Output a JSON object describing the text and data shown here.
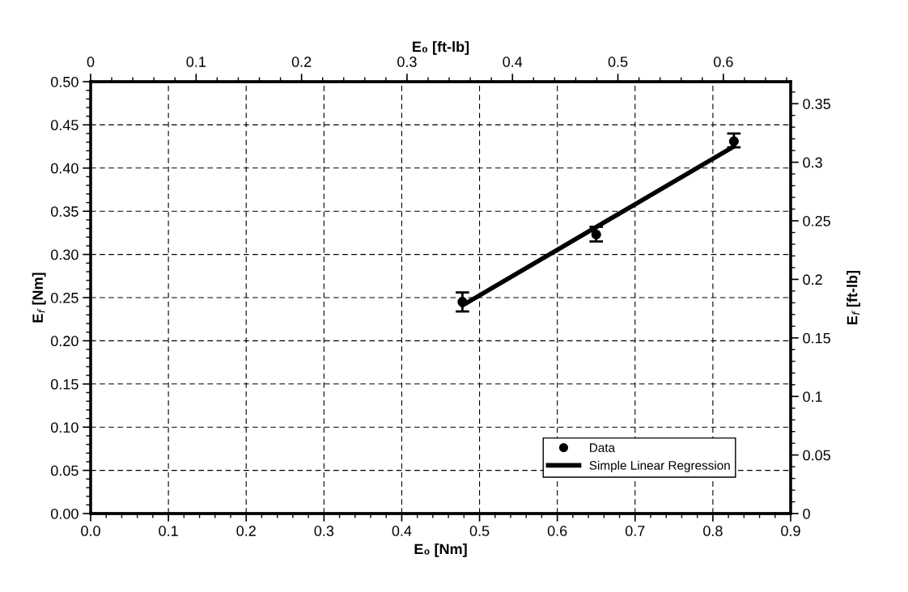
{
  "chart_data": {
    "type": "scatter",
    "xlabel": "E₀ [Nm]",
    "ylabel": "E$_{f}$ [Nm]",
    "x2label": "E₀ [ft-lb]",
    "y2label": "E$_{f}$ [ft-lb]",
    "xlim": [
      0,
      0.9
    ],
    "xticks": [
      {
        "value": 0,
        "label": "0.0"
      },
      0.1,
      0.2,
      0.3,
      0.4,
      0.5,
      0.6,
      0.7,
      0.8,
      0.9
    ],
    "ylim": [
      0,
      0.5
    ],
    "yticks": [
      {
        "value": 0,
        "label": "0.00"
      },
      0.05,
      {
        "value": 0.1,
        "label": "0.10"
      },
      0.15,
      {
        "value": 0.2,
        "label": "0.20"
      },
      0.25,
      {
        "value": 0.3,
        "label": "0.30"
      },
      0.35,
      {
        "value": 0.4,
        "label": "0.40"
      },
      0.45,
      {
        "value": 0.5,
        "label": "0.50"
      }
    ],
    "x2lim": [
      0,
      0.6638
    ],
    "x2ticks": [
      0,
      0.1,
      0.2,
      0.3,
      0.4,
      0.5,
      0.6
    ],
    "y2lim": [
      0,
      0.3688
    ],
    "y2ticks": [
      0,
      0.05,
      0.1,
      0.15,
      0.2,
      0.25,
      0.3,
      0.35
    ],
    "grid": true,
    "legend": "bottom right",
    "series": [
      {
        "name": "Data",
        "color": "#000000",
        "marker": "circle",
        "x": [
          0.478,
          0.65,
          0.827
        ],
        "values": [
          0.245,
          0.323,
          0.431
        ],
        "errors": [
          [
            0.234,
            0.256
          ],
          [
            0.315,
            0.332
          ],
          [
            0.424,
            0.44
          ]
        ]
      },
      {
        "name": "Simple Linear Regression",
        "type": "line",
        "color": "#000000",
        "marker": "none",
        "line_style": "solid",
        "x": [
          0.478,
          0.827
        ],
        "values": [
          0.241,
          0.425
        ]
      }
    ]
  }
}
